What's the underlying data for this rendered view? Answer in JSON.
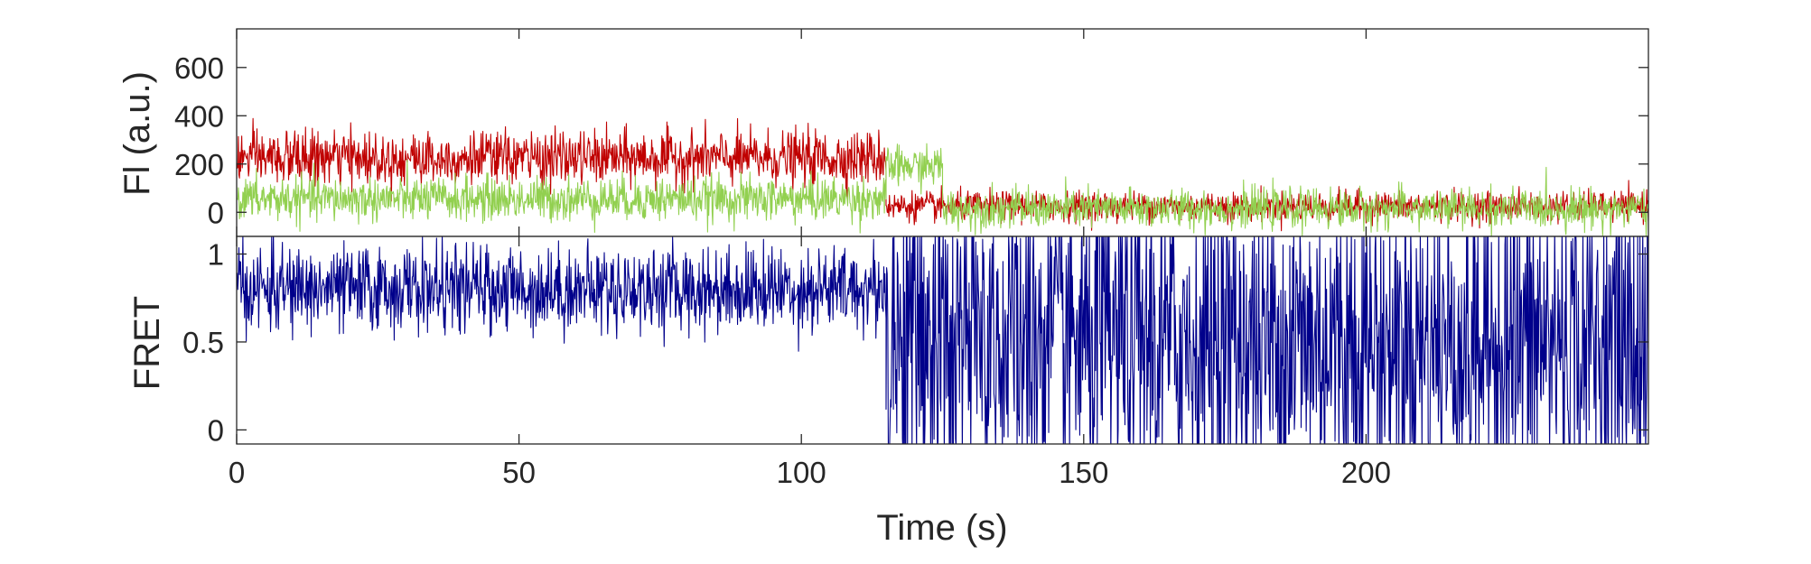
{
  "chart_data": [
    {
      "type": "line",
      "panel": "fluorescence",
      "title": "",
      "xlabel": "",
      "ylabel": "Fl (a.u.)",
      "xlim": [
        0,
        250
      ],
      "ylim": [
        -100,
        760
      ],
      "xticks": [
        0,
        50,
        100,
        150,
        200
      ],
      "yticks": [
        0,
        200,
        400,
        600
      ],
      "ytick_labels": [
        "0",
        "200",
        "400",
        "600"
      ],
      "grid": false,
      "legend": "none",
      "series": [
        {
          "color": "#C00000",
          "sample_interval_s": 0.1,
          "segments": [
            {
              "x_start": 0,
              "x_end": 115,
              "mean": 225,
              "noise_sd": 55
            },
            {
              "x_start": 115,
              "x_end": 250,
              "mean": 25,
              "noise_sd": 30
            }
          ]
        },
        {
          "color": "#92D050",
          "sample_interval_s": 0.1,
          "segments": [
            {
              "x_start": 0,
              "x_end": 115,
              "mean": 55,
              "noise_sd": 45
            },
            {
              "x_start": 115,
              "x_end": 125,
              "mean": 190,
              "noise_sd": 40
            },
            {
              "x_start": 125,
              "x_end": 250,
              "mean": 15,
              "noise_sd": 40
            }
          ]
        }
      ]
    },
    {
      "type": "line",
      "panel": "fret",
      "title": "",
      "xlabel": "Time (s)",
      "ylabel": "FRET",
      "xlim": [
        0,
        250
      ],
      "ylim": [
        -0.08,
        1.1
      ],
      "xticks": [
        0,
        50,
        100,
        150,
        200
      ],
      "xtick_labels": [
        "0",
        "50",
        "100",
        "150",
        "200"
      ],
      "yticks": [
        0,
        0.5,
        1
      ],
      "ytick_labels": [
        "0",
        "0.5",
        "1"
      ],
      "grid": false,
      "legend": "none",
      "series": [
        {
          "color": "#00008B",
          "sample_interval_s": 0.1,
          "segments": [
            {
              "x_start": 0,
              "x_end": 115,
              "mean": 0.8,
              "noise_sd": 0.12
            },
            {
              "x_start": 115,
              "x_end": 250,
              "mean": 0.5,
              "noise_sd": 0.5
            }
          ]
        }
      ]
    }
  ]
}
